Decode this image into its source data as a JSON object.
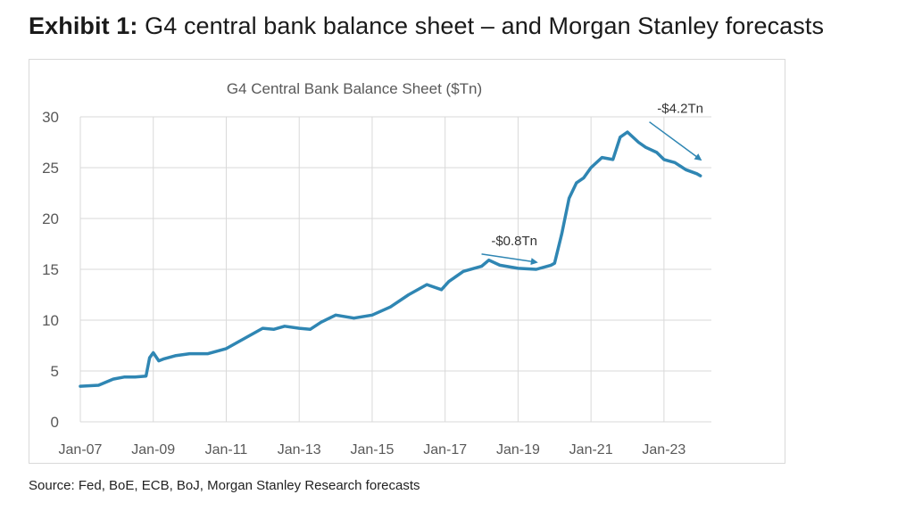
{
  "exhibit": {
    "label": "Exhibit 1:",
    "title": "G4 central bank balance sheet – and Morgan Stanley forecasts"
  },
  "source": "Source: Fed, BoE, ECB, BoJ, Morgan Stanley Research forecasts",
  "colors": {
    "line": "#2f86b3",
    "grid": "#d9d9d9",
    "axis_text": "#595959"
  },
  "chart_data": {
    "type": "line",
    "title": "G4 Central Bank Balance Sheet ($Tn)",
    "xlabel": "",
    "ylabel": "",
    "x_tick_labels": [
      "Jan-07",
      "Jan-09",
      "Jan-11",
      "Jan-13",
      "Jan-15",
      "Jan-17",
      "Jan-19",
      "Jan-21",
      "Jan-23"
    ],
    "x_tick_years": [
      2007,
      2009,
      2011,
      2013,
      2015,
      2017,
      2019,
      2021,
      2023
    ],
    "xlim": [
      2007,
      2024.3
    ],
    "ylim": [
      0,
      30
    ],
    "yticks": [
      0,
      5,
      10,
      15,
      20,
      25,
      30
    ],
    "grid": true,
    "series": [
      {
        "name": "G4 Central Bank Balance Sheet",
        "x": [
          2007.0,
          2007.5,
          2007.9,
          2008.2,
          2008.5,
          2008.8,
          2008.9,
          2009.0,
          2009.15,
          2009.3,
          2009.6,
          2010.0,
          2010.5,
          2011.0,
          2011.5,
          2012.0,
          2012.3,
          2012.6,
          2013.0,
          2013.3,
          2013.6,
          2014.0,
          2014.5,
          2015.0,
          2015.5,
          2016.0,
          2016.5,
          2016.9,
          2017.1,
          2017.5,
          2018.0,
          2018.2,
          2018.5,
          2019.0,
          2019.5,
          2019.9,
          2020.0,
          2020.2,
          2020.4,
          2020.6,
          2020.8,
          2021.0,
          2021.3,
          2021.6,
          2021.8,
          2022.0,
          2022.3,
          2022.5,
          2022.8,
          2023.0,
          2023.3,
          2023.6,
          2023.9,
          2024.0
        ],
        "y": [
          3.5,
          3.6,
          4.2,
          4.4,
          4.4,
          4.5,
          6.3,
          6.8,
          6.0,
          6.2,
          6.5,
          6.7,
          6.7,
          7.2,
          8.2,
          9.2,
          9.1,
          9.4,
          9.2,
          9.1,
          9.8,
          10.5,
          10.2,
          10.5,
          11.3,
          12.5,
          13.5,
          13.0,
          13.8,
          14.8,
          15.3,
          15.9,
          15.4,
          15.1,
          15.0,
          15.4,
          15.6,
          18.5,
          22.0,
          23.5,
          24.0,
          25.0,
          26.0,
          25.8,
          28.0,
          28.5,
          27.5,
          27.0,
          26.5,
          25.8,
          25.5,
          24.8,
          24.4,
          24.2
        ]
      }
    ],
    "annotations": [
      {
        "text": "-$0.8Tn",
        "arrow_from": [
          2018.0,
          16.5
        ],
        "arrow_to": [
          2019.5,
          15.7
        ]
      },
      {
        "text": "-$4.2Tn",
        "arrow_from": [
          2022.6,
          29.5
        ],
        "arrow_to": [
          2024.0,
          25.8
        ]
      }
    ]
  }
}
